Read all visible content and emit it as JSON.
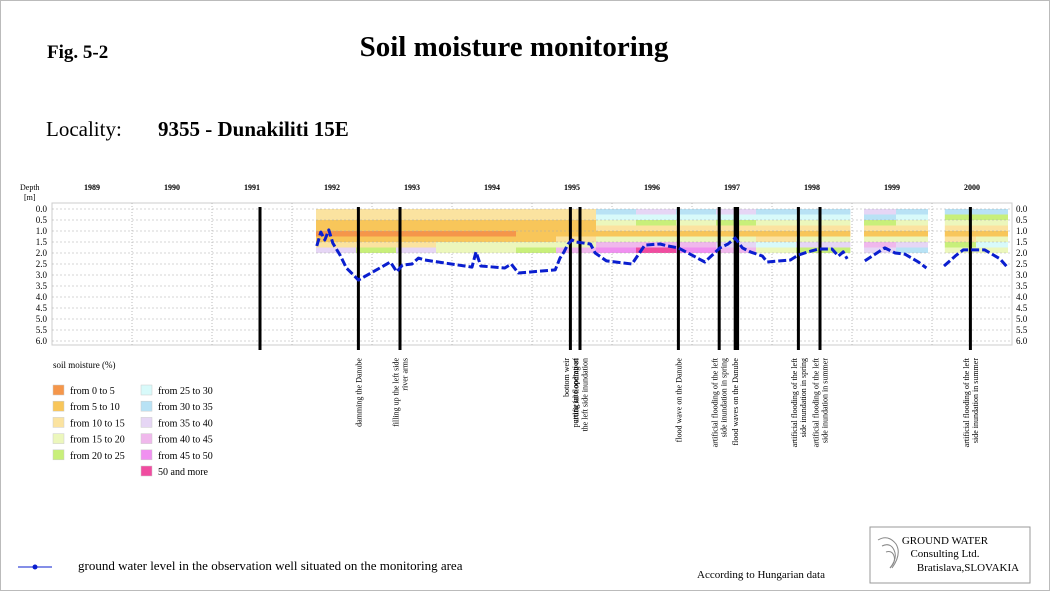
{
  "chart_data": {
    "type": "heatmap",
    "figure_label": "Fig. 5-2",
    "title": "Soil moisture monitoring",
    "locality_label": "Locality:",
    "locality": "9355 - Dunakiliti 15E",
    "y_label": [
      "Depth",
      "[m]"
    ],
    "categories": [
      "1989",
      "1990",
      "1991",
      "1992",
      "1993",
      "1994",
      "1995",
      "1996",
      "1997",
      "1998",
      "1999",
      "2000"
    ],
    "xlim": [
      1989,
      2001
    ],
    "ylim": [
      0,
      6
    ],
    "yticks": [
      {
        "value": 0,
        "label": "0.0"
      },
      {
        "value": 0.5,
        "label": "0.5"
      },
      {
        "value": 1,
        "label": "1.0"
      },
      {
        "value": 1.5,
        "label": "1.5"
      },
      {
        "value": 2,
        "label": "2.0"
      },
      {
        "value": 2.5,
        "label": "2.5"
      },
      {
        "value": 3,
        "label": "3.0"
      },
      {
        "value": 3.5,
        "label": "3.5"
      },
      {
        "value": 4,
        "label": "4.0"
      },
      {
        "value": 4.5,
        "label": "4.5"
      },
      {
        "value": 5,
        "label": "5.0"
      },
      {
        "value": 5.5,
        "label": "5.5"
      },
      {
        "value": 6,
        "label": "6.0"
      }
    ],
    "grid": true,
    "legend_title": "soil moisture (%)",
    "classes": [
      {
        "from": 0,
        "to": 5,
        "label": "from 0 to 5",
        "color": "#f5964a"
      },
      {
        "from": 5,
        "to": 10,
        "label": "from 5 to 10",
        "color": "#f8c65a"
      },
      {
        "from": 10,
        "to": 15,
        "label": "from 10 to 15",
        "color": "#fbe3a0"
      },
      {
        "from": 15,
        "to": 20,
        "label": "from 15 to 20",
        "color": "#ecf7bc"
      },
      {
        "from": 20,
        "to": 25,
        "label": "from 20 to 25",
        "color": "#c8ef7a"
      },
      {
        "from": 25,
        "to": 30,
        "label": "from 25 to 30",
        "color": "#d8fafa"
      },
      {
        "from": 30,
        "to": 35,
        "label": "from 30 to 35",
        "color": "#b8e2f5"
      },
      {
        "from": 35,
        "to": 40,
        "label": "from 35 to 40",
        "color": "#e6d6f5"
      },
      {
        "from": 40,
        "to": 45,
        "label": "from 40 to 45",
        "color": "#f0b8ec"
      },
      {
        "from": 45,
        "to": 50,
        "label": "from 45 to 50",
        "color": "#f090f0"
      },
      {
        "from": 50,
        "to": null,
        "label": "50 and more",
        "color": "#f04ca0"
      }
    ],
    "heatmap": {
      "depth_edges": [
        0,
        0.25,
        0.5,
        0.75,
        1,
        1.25,
        1.5,
        1.75,
        2
      ],
      "x_edges": [
        1992.3,
        1992.8,
        1993.3,
        1993.8,
        1994.3,
        1994.8,
        1995.3,
        1995.8,
        1996.3,
        1996.8,
        1997.3,
        1997.8,
        1998.3,
        1998.98,
        1999.15,
        1999.55,
        1999.95,
        2000.16,
        2000.55,
        2000.95
      ],
      "values": [
        [
          12,
          12,
          8,
          7,
          4,
          8,
          14,
          37
        ],
        [
          12,
          11,
          8,
          6,
          3,
          7,
          13,
          22
        ],
        [
          12,
          11,
          8,
          6,
          3,
          8,
          14,
          38
        ],
        [
          13,
          12,
          8,
          7,
          4,
          8,
          15,
          17
        ],
        [
          12,
          12,
          8,
          7,
          4,
          9,
          16,
          18
        ],
        [
          13,
          12,
          9,
          7,
          5,
          9,
          16,
          24
        ],
        [
          14,
          12,
          9,
          8,
          6,
          11,
          18,
          42
        ],
        [
          32,
          28,
          18,
          12,
          7,
          16,
          42,
          47
        ],
        [
          38,
          28,
          22,
          12,
          7,
          17,
          43,
          52
        ],
        [
          33,
          29,
          18,
          11,
          6,
          16,
          42,
          47
        ],
        [
          36,
          27,
          20,
          12,
          7,
          15,
          38,
          44
        ],
        [
          31,
          26,
          17,
          11,
          6,
          14,
          26,
          16
        ],
        [
          33,
          28,
          18,
          12,
          7,
          16,
          38,
          21
        ],
        null,
        [
          36,
          30,
          20,
          13,
          8,
          17,
          42,
          37
        ],
        [
          33,
          28,
          18,
          12,
          7,
          16,
          38,
          34
        ],
        null,
        [
          30,
          22,
          16,
          11,
          6,
          14,
          24,
          18
        ],
        [
          32,
          24,
          17,
          12,
          7,
          15,
          26,
          19
        ]
      ]
    },
    "groundwater": {
      "name": "ground water level in the observation well situated on the monitoring area",
      "color": "#0a1ecf",
      "x": [
        1992.31,
        1992.36,
        1992.41,
        1992.46,
        1992.51,
        1992.6,
        1992.68,
        1992.73,
        1992.83,
        1993.23,
        1993.31,
        1993.38,
        1993.5,
        1993.58,
        1993.66,
        1994.25,
        1994.3,
        1994.36,
        1994.66,
        1994.74,
        1994.83,
        1995.29,
        1995.35,
        1995.4,
        1995.45,
        1995.5,
        1995.55,
        1995.73,
        1995.79,
        1995.93,
        1996.25,
        1996.41,
        1996.6,
        1996.7,
        1996.83,
        1997.16,
        1997.35,
        1997.45,
        1997.54,
        1997.63,
        1997.73,
        1997.88,
        1997.94,
        1998.23,
        1998.33,
        1998.45,
        1998.58,
        1998.75,
        1998.83,
        1998.89,
        1998.94,
        1999.05,
        1999.16,
        1999.29,
        1999.41,
        1999.54,
        1999.66,
        1999.83,
        1999.93,
        2000.04,
        2000.15,
        2000.29,
        2000.39,
        2000.66,
        2000.85,
        2000.94
      ],
      "depth": [
        1.68,
        1.05,
        1.41,
        0.95,
        1.55,
        2.09,
        2.68,
        2.86,
        3.23,
        2.41,
        2.86,
        2.55,
        2.5,
        2.23,
        2.32,
        2.64,
        1.95,
        2.59,
        2.68,
        2.5,
        2.91,
        2.77,
        2.23,
        1.95,
        1.59,
        1.41,
        1.5,
        1.59,
        2.0,
        2.36,
        2.5,
        1.64,
        1.59,
        1.68,
        1.77,
        2.41,
        1.77,
        1.59,
        1.32,
        1.77,
        1.95,
        2.14,
        2.41,
        2.32,
        2.09,
        1.95,
        1.82,
        1.82,
        2.14,
        1.95,
        2.27,
        null,
        2.36,
        2.05,
        1.77,
        2.0,
        2.05,
        2.41,
        2.68,
        null,
        2.59,
        2.14,
        1.86,
        1.86,
        2.27,
        2.64
      ]
    },
    "events": [
      {
        "x": 1991.6
      },
      {
        "x": 1992.83,
        "label": [
          "damming the Danube"
        ]
      },
      {
        "x": 1993.35,
        "label": [
          "filling up the left side",
          "river arms"
        ]
      },
      {
        "x": 1995.48,
        "label": [
          "bottom weir",
          "putting into operation"
        ]
      },
      {
        "x": 1995.6,
        "label": [
          "artificial flooding of",
          "the left side inundation"
        ]
      },
      {
        "x": 1996.83,
        "label": [
          "flood wave on the Danube"
        ]
      },
      {
        "x": 1997.34,
        "label": [
          "artificial flooding of the left",
          "side inundation in spring"
        ]
      },
      {
        "x": 1997.54,
        "label": [
          "flood waves on the Danube"
        ]
      },
      {
        "x": 1997.57
      },
      {
        "x": 1998.33,
        "label": [
          "artificial flooding of the left",
          "side inundation in spring"
        ]
      },
      {
        "x": 1998.6,
        "label": [
          "artificial flooding of the left",
          "side inundation in summer"
        ]
      },
      {
        "x": 2000.48,
        "label": [
          "artificial flooding of the left",
          "side inundation in summer"
        ]
      }
    ],
    "source_note": "According to Hungarian data",
    "logo": [
      "GROUND WATER",
      "Consulting Ltd.",
      "Bratislava,SLOVAKIA"
    ]
  }
}
